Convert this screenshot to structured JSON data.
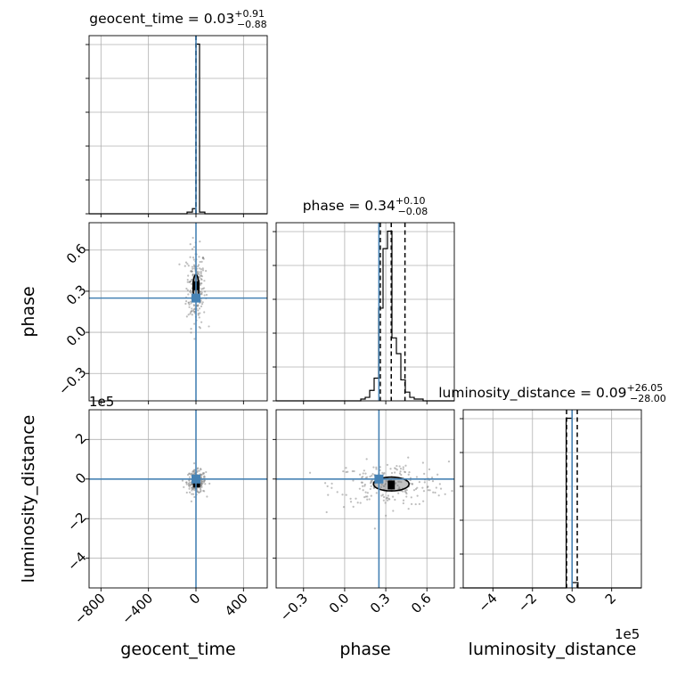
{
  "chart_data": {
    "type": "corner",
    "parameters": [
      "geocent_time",
      "phase",
      "luminosity_distance"
    ],
    "axis_labels": {
      "geocent_time": "geocent_time",
      "phase": "phase",
      "luminosity_distance": "luminosity_distance"
    },
    "ranges": {
      "geocent_time": [
        -900,
        600
      ],
      "phase": [
        -0.5,
        0.8
      ],
      "luminosity_distance": [
        -550000,
        350000
      ]
    },
    "ticks": {
      "geocent_time": [
        {
          "v": -800,
          "t": "−800"
        },
        {
          "v": -400,
          "t": "−400"
        },
        {
          "v": 0,
          "t": "0"
        },
        {
          "v": 400,
          "t": "400"
        }
      ],
      "phase": [
        {
          "v": -0.3,
          "t": "−0.3"
        },
        {
          "v": 0.0,
          "t": "0.0"
        },
        {
          "v": 0.3,
          "t": "0.3"
        },
        {
          "v": 0.6,
          "t": "0.6"
        }
      ],
      "luminosity_distance_x": [
        {
          "v": -400000,
          "t": "−4"
        },
        {
          "v": -200000,
          "t": "−2"
        },
        {
          "v": 0,
          "t": "0"
        },
        {
          "v": 200000,
          "t": "2"
        }
      ],
      "luminosity_distance_y": [
        {
          "v": -400000,
          "t": "−4"
        },
        {
          "v": -200000,
          "t": "−2"
        },
        {
          "v": 0,
          "t": "0"
        },
        {
          "v": 200000,
          "t": "2"
        }
      ]
    },
    "offset_text": "1e5",
    "titles": {
      "geocent_time": {
        "main": "geocent_time = 0.03",
        "sup": "+0.91",
        "sub": "−0.88"
      },
      "phase": {
        "main": "phase = 0.34",
        "sup": "+0.10",
        "sub": "−0.08"
      },
      "luminosity_distance": {
        "main": "luminosity_distance = 0.09",
        "sup": "+26.05",
        "sub": "−28.00"
      }
    },
    "truths": {
      "geocent_time": 0,
      "phase": 0.25,
      "luminosity_distance": 0
    },
    "quantiles": {
      "geocent_time": [
        -0.85,
        0.03,
        0.94
      ],
      "phase": [
        0.26,
        0.34,
        0.44
      ],
      "luminosity_distance": [
        -27.91,
        0.09,
        26.14
      ]
    },
    "histograms": {
      "geocent_time": {
        "edges": [
          -900,
          -825,
          -750,
          -675,
          -600,
          -525,
          -450,
          -375,
          -300,
          -225,
          -150,
          -75,
          -30,
          0,
          30,
          75,
          150,
          225,
          300,
          375,
          450,
          525,
          600
        ],
        "counts": [
          0,
          0,
          0,
          0,
          0,
          0,
          0,
          0,
          0,
          0,
          0,
          0.01,
          0.03,
          1.0,
          0.01,
          0,
          0,
          0,
          0,
          0,
          0,
          0
        ]
      },
      "phase": {
        "edges": [
          -0.5,
          -0.4675,
          -0.435,
          -0.4025,
          -0.37,
          -0.3375,
          -0.305,
          -0.2725,
          -0.24,
          -0.2075,
          -0.175,
          -0.1425,
          -0.11,
          -0.0775,
          -0.045,
          -0.0125,
          0.02,
          0.0525,
          0.085,
          0.1175,
          0.15,
          0.1825,
          0.215,
          0.2475,
          0.28,
          0.3125,
          0.345,
          0.3775,
          0.41,
          0.4425,
          0.475,
          0.5075,
          0.54,
          0.5725,
          0.605,
          0.6375,
          0.67,
          0.7025,
          0.735,
          0.7675,
          0.8
        ],
        "counts": [
          0,
          0,
          0,
          0,
          0,
          0,
          0,
          0,
          0,
          0,
          0,
          0,
          0,
          0,
          0,
          0,
          0,
          0,
          0,
          0.01,
          0.02,
          0.06,
          0.13,
          0.53,
          0.87,
          0.97,
          0.36,
          0.27,
          0.12,
          0.05,
          0.02,
          0.01,
          0.01,
          0,
          0,
          0,
          0,
          0,
          0,
          0
        ]
      },
      "luminosity_distance": {
        "edges": [
          -550000,
          -505000,
          -460000,
          -415000,
          -370000,
          -325000,
          -280000,
          -235000,
          -190000,
          -145000,
          -100000,
          -55000,
          -30000,
          0,
          30000,
          55000,
          100000,
          145000,
          190000,
          235000,
          280000,
          325000,
          350000
        ],
        "counts": [
          0,
          0,
          0,
          0,
          0,
          0,
          0,
          0,
          0,
          0,
          0,
          0,
          0.95,
          0.03,
          0,
          0,
          0,
          0,
          0,
          0,
          0,
          0
        ]
      }
    },
    "pairs": [
      {
        "x": "geocent_time",
        "y": "phase",
        "core": [
          {
            "x": 0,
            "y": 0.34
          }
        ],
        "contour": {
          "cx": 0,
          "cy": 0.33,
          "rx": 25,
          "ry": 0.09
        }
      },
      {
        "x": "geocent_time",
        "y": "luminosity_distance",
        "core": [
          {
            "x": 5,
            "y": -20000
          }
        ],
        "contour": {
          "cx": 3,
          "cy": -15000,
          "rx": 25,
          "ry": 18000
        }
      },
      {
        "x": "phase",
        "y": "luminosity_distance",
        "core": [
          {
            "x": 0.34,
            "y": -30000
          }
        ],
        "contour": {
          "cx": 0.34,
          "cy": -25000,
          "rx": 0.13,
          "ry": 35000
        }
      }
    ]
  }
}
